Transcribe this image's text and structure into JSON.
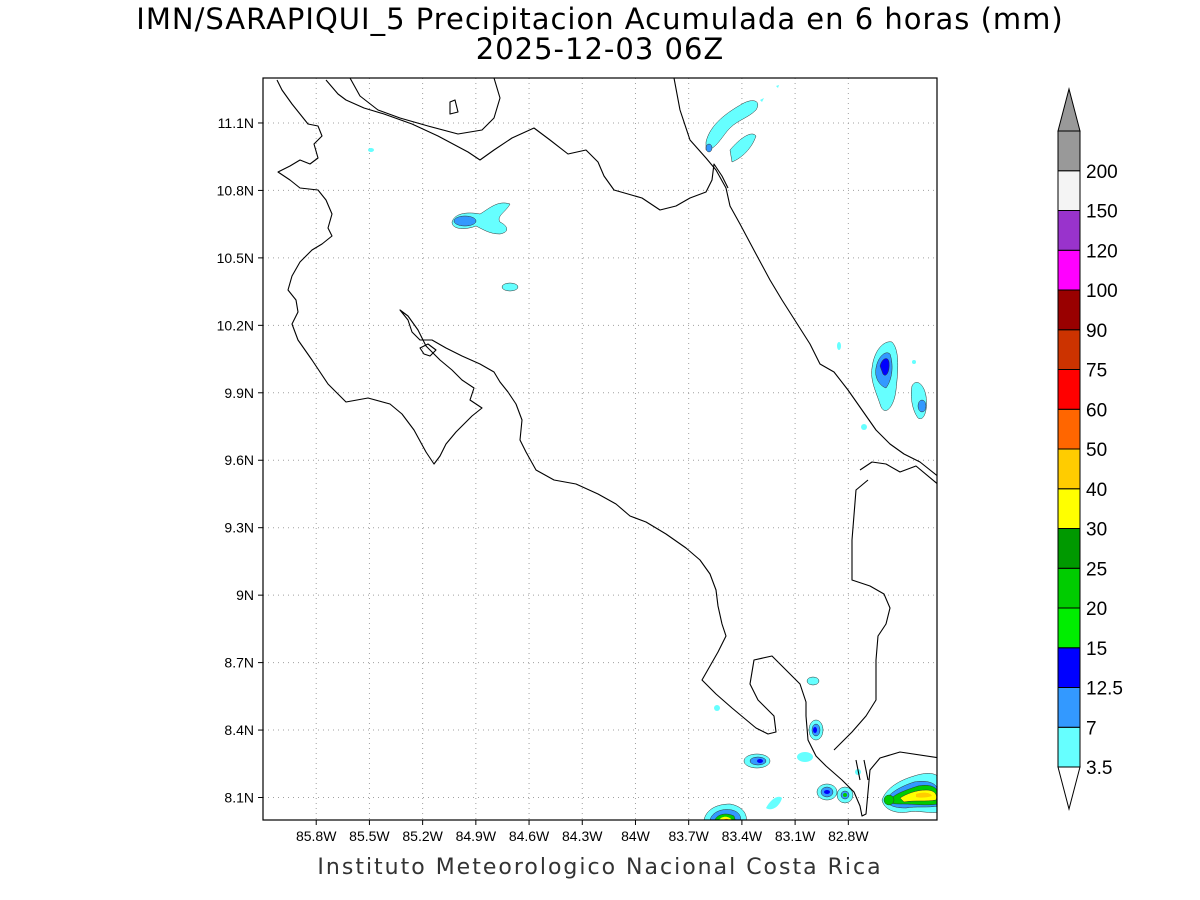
{
  "title": {
    "line1": "IMN/SARAPIQUI_5 Precipitacion Acumulada en 6 horas (mm)",
    "line2": "2025-12-03 06Z"
  },
  "footer": "Instituto Meteorologico Nacional Costa Rica",
  "map": {
    "lon_range": [
      -86.1,
      -82.3
    ],
    "lat_range": [
      8.0,
      11.3
    ],
    "lat_ticks": [
      {
        "value": 11.1,
        "label": "11.1N"
      },
      {
        "value": 10.8,
        "label": "10.8N"
      },
      {
        "value": 10.5,
        "label": "10.5N"
      },
      {
        "value": 10.2,
        "label": "10.2N"
      },
      {
        "value": 9.9,
        "label": "9.9N"
      },
      {
        "value": 9.6,
        "label": "9.6N"
      },
      {
        "value": 9.3,
        "label": "9.3N"
      },
      {
        "value": 9.0,
        "label": "9N"
      },
      {
        "value": 8.7,
        "label": "8.7N"
      },
      {
        "value": 8.4,
        "label": "8.4N"
      },
      {
        "value": 8.1,
        "label": "8.1N"
      }
    ],
    "lon_ticks": [
      {
        "value": -85.8,
        "label": "85.8W"
      },
      {
        "value": -85.5,
        "label": "85.5W"
      },
      {
        "value": -85.2,
        "label": "85.2W"
      },
      {
        "value": -84.9,
        "label": "84.9W"
      },
      {
        "value": -84.6,
        "label": "84.6W"
      },
      {
        "value": -84.3,
        "label": "84.3W"
      },
      {
        "value": -84.0,
        "label": "84W"
      },
      {
        "value": -83.7,
        "label": "83.7W"
      },
      {
        "value": -83.4,
        "label": "83.4W"
      },
      {
        "value": -83.1,
        "label": "83.1W"
      },
      {
        "value": -82.8,
        "label": "82.8W"
      }
    ],
    "grid": true
  },
  "legend": {
    "levels": [
      {
        "label": "3.5",
        "color": "#66ffff"
      },
      {
        "label": "7",
        "color": "#3399ff"
      },
      {
        "label": "12.5",
        "color": "#0000ff"
      },
      {
        "label": "15",
        "color": "#00ee00"
      },
      {
        "label": "20",
        "color": "#00cc00"
      },
      {
        "label": "25",
        "color": "#009900"
      },
      {
        "label": "30",
        "color": "#ffff00"
      },
      {
        "label": "40",
        "color": "#ffcc00"
      },
      {
        "label": "50",
        "color": "#ff6600"
      },
      {
        "label": "60",
        "color": "#ff0000"
      },
      {
        "label": "75",
        "color": "#cc3300"
      },
      {
        "label": "90",
        "color": "#990000"
      },
      {
        "label": "100",
        "color": "#ff00ff"
      },
      {
        "label": "120",
        "color": "#9933cc"
      },
      {
        "label": "150",
        "color": "#f4f4f4"
      },
      {
        "label": "200",
        "color": "#999999"
      }
    ],
    "bottom_arrow_color": "#ffffff",
    "top_arrow_color": "#999999"
  }
}
